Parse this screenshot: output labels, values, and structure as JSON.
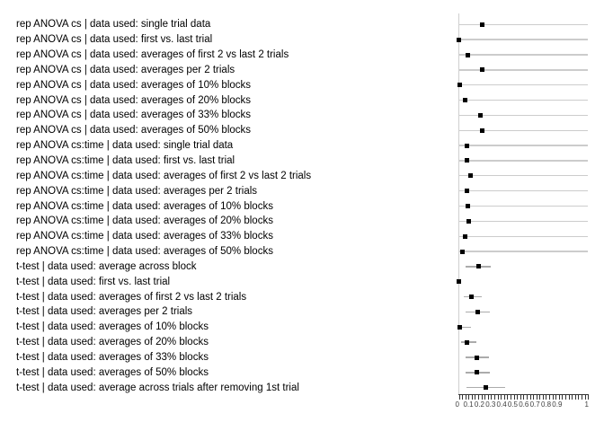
{
  "figure": {
    "background": "#ffffff",
    "marker_color": "#000000",
    "ci_color_full_range": "#cccccc",
    "ci_color_short": "#ababab",
    "zero_ref_line_color": "#cfcfcf",
    "axis_color": "#333333",
    "tick_label_color": "#404040"
  },
  "chart_data": {
    "type": "scatter",
    "subtype": "forest-dot-plot",
    "title": "",
    "xlabel": "",
    "ylabel": "",
    "xlim": [
      0,
      1
    ],
    "minor_tick_step": 0.025,
    "x_tick_labels": [
      "0",
      "0.1",
      "0.2",
      "0.3",
      "0.4",
      "0.5",
      "0.6",
      "0.7",
      "0.8",
      "0.9",
      "1"
    ],
    "grid": "off",
    "legend": "none",
    "rows": [
      {
        "group": "rep ANOVA cs",
        "label": "rep ANOVA cs | data used: single trial data",
        "value": 0.18,
        "ci": [
          0,
          1
        ]
      },
      {
        "group": "rep ANOVA cs",
        "label": "rep ANOVA cs | data used: first vs. last trial",
        "value": 0.0,
        "ci": [
          0,
          1
        ]
      },
      {
        "group": "rep ANOVA cs",
        "label": "rep ANOVA cs | data used: averages of first 2 vs last 2 trials",
        "value": 0.07,
        "ci": [
          0,
          1
        ]
      },
      {
        "group": "rep ANOVA cs",
        "label": "rep ANOVA cs | data used: averages per 2 trials",
        "value": 0.18,
        "ci": [
          0,
          1
        ]
      },
      {
        "group": "rep ANOVA cs",
        "label": "rep ANOVA cs | data used: averages of 10% blocks",
        "value": 0.01,
        "ci": [
          0,
          1
        ]
      },
      {
        "group": "rep ANOVA cs",
        "label": "rep ANOVA cs | data used: averages of 20% blocks",
        "value": 0.05,
        "ci": [
          0,
          1
        ]
      },
      {
        "group": "rep ANOVA cs",
        "label": "rep ANOVA cs | data used: averages of 33% blocks",
        "value": 0.17,
        "ci": [
          0,
          1
        ]
      },
      {
        "group": "rep ANOVA cs",
        "label": "rep ANOVA cs | data used: averages of 50% blocks",
        "value": 0.18,
        "ci": [
          0,
          1
        ]
      },
      {
        "group": "rep ANOVA cs:time",
        "label": "rep ANOVA cs:time | data used: single trial data",
        "value": 0.06,
        "ci": [
          0,
          1
        ]
      },
      {
        "group": "rep ANOVA cs:time",
        "label": "rep ANOVA cs:time | data used: first vs. last trial",
        "value": 0.06,
        "ci": [
          0,
          1
        ]
      },
      {
        "group": "rep ANOVA cs:time",
        "label": "rep ANOVA cs:time | data used: averages of first 2 vs last 2 trials",
        "value": 0.09,
        "ci": [
          0,
          1
        ]
      },
      {
        "group": "rep ANOVA cs:time",
        "label": "rep ANOVA cs:time | data used: averages per 2 trials",
        "value": 0.06,
        "ci": [
          0,
          1
        ]
      },
      {
        "group": "rep ANOVA cs:time",
        "label": "rep ANOVA cs:time | data used: averages of 10% blocks",
        "value": 0.07,
        "ci": [
          0,
          1
        ]
      },
      {
        "group": "rep ANOVA cs:time",
        "label": "rep ANOVA cs:time | data used: averages of 20% blocks",
        "value": 0.075,
        "ci": [
          0,
          1
        ]
      },
      {
        "group": "rep ANOVA cs:time",
        "label": "rep ANOVA cs:time | data used: averages of 33% blocks",
        "value": 0.05,
        "ci": [
          0,
          1
        ]
      },
      {
        "group": "rep ANOVA cs:time",
        "label": "rep ANOVA cs:time | data used: averages of 50% blocks",
        "value": 0.03,
        "ci": [
          0,
          1
        ]
      },
      {
        "group": "t-test",
        "label": "t-test | data used: average across block",
        "value": 0.15,
        "ci": [
          0.05,
          0.245
        ]
      },
      {
        "group": "t-test",
        "label": "t-test | data used: first vs. last trial",
        "value": 0.0,
        "ci": [
          0,
          0.02
        ]
      },
      {
        "group": "t-test",
        "label": "t-test | data used: averages of first 2 vs last 2 trials",
        "value": 0.095,
        "ci": [
          0.035,
          0.18
        ]
      },
      {
        "group": "t-test",
        "label": "t-test | data used: averages per 2 trials",
        "value": 0.145,
        "ci": [
          0.05,
          0.24
        ]
      },
      {
        "group": "t-test",
        "label": "t-test | data used: averages of 10% blocks",
        "value": 0.01,
        "ci": [
          0,
          0.095
        ]
      },
      {
        "group": "t-test",
        "label": "t-test | data used: averages of 20% blocks",
        "value": 0.065,
        "ci": [
          0.015,
          0.135
        ]
      },
      {
        "group": "t-test",
        "label": "t-test | data used: averages of 33% blocks",
        "value": 0.14,
        "ci": [
          0.05,
          0.235
        ]
      },
      {
        "group": "t-test",
        "label": "t-test | data used: averages of 50% blocks",
        "value": 0.14,
        "ci": [
          0.05,
          0.24
        ]
      },
      {
        "group": "t-test",
        "label": "t-test | data used: average across trials after removing 1st trial",
        "value": 0.21,
        "ci": [
          0.06,
          0.355
        ]
      }
    ]
  }
}
